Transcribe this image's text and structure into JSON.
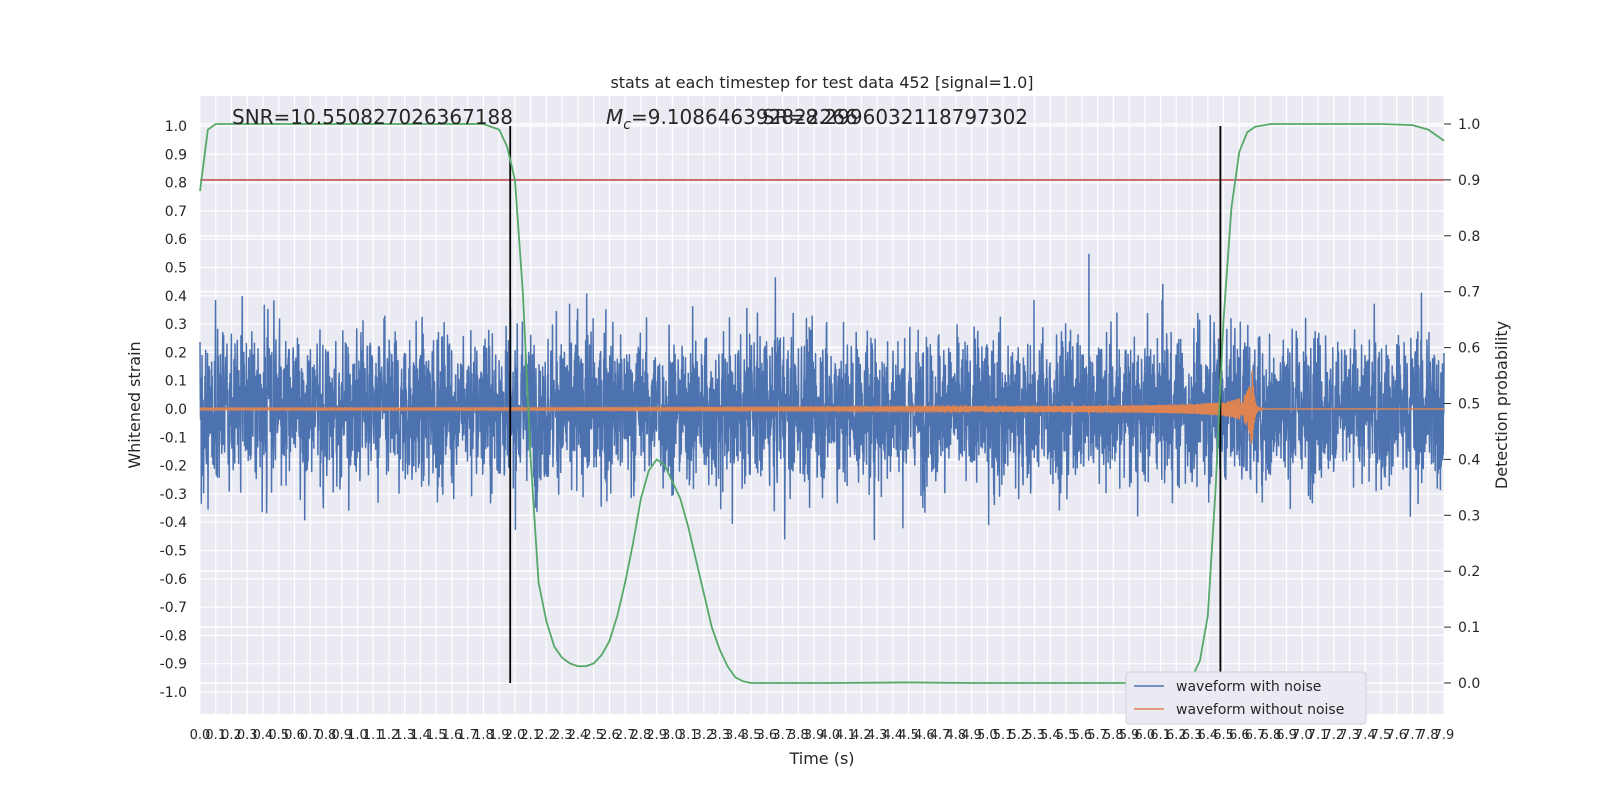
{
  "chart_data": {
    "type": "line",
    "title": "stats at each timestep for test data 452 [signal=1.0]",
    "xlabel": "Time (s)",
    "ylabel": "Whitened strain",
    "ylabel_right": "Detection probability",
    "xlim": [
      0,
      7.9
    ],
    "ylim": [
      -1.08,
      1.1
    ],
    "ylim_right": [
      -0.05,
      1.05
    ],
    "x_ticks": [
      "0.0",
      "0.1",
      "0.2",
      "0.3",
      "0.4",
      "0.5",
      "0.6",
      "0.7",
      "0.8",
      "0.9",
      "1.0",
      "1.1",
      "1.2",
      "1.3",
      "1.4",
      "1.5",
      "1.6",
      "1.7",
      "1.8",
      "1.9",
      "2.0",
      "2.1",
      "2.2",
      "2.3",
      "2.4",
      "2.5",
      "2.6",
      "2.7",
      "2.8",
      "2.9",
      "3.0",
      "3.1",
      "3.2",
      "3.3",
      "3.4",
      "3.5",
      "3.6",
      "3.7",
      "3.8",
      "3.9",
      "4.0",
      "4.1",
      "4.2",
      "4.3",
      "4.4",
      "4.5",
      "4.6",
      "4.7",
      "4.8",
      "4.9",
      "5.0",
      "5.1",
      "5.2",
      "5.3",
      "5.4",
      "5.5",
      "5.6",
      "5.7",
      "5.8",
      "5.9",
      "6.0",
      "6.1",
      "6.2",
      "6.3",
      "6.4",
      "6.5",
      "6.6",
      "6.7",
      "6.8",
      "6.9",
      "7.0",
      "7.1",
      "7.2",
      "7.3",
      "7.4",
      "7.5",
      "7.6",
      "7.7",
      "7.8",
      "7.9"
    ],
    "y_ticks": [
      "-1.0",
      "-0.9",
      "-0.8",
      "-0.7",
      "-0.6",
      "-0.5",
      "-0.4",
      "-0.3",
      "-0.2",
      "-0.1",
      "0.0",
      "0.1",
      "0.2",
      "0.3",
      "0.4",
      "0.5",
      "0.6",
      "0.7",
      "0.8",
      "0.9",
      "1.0"
    ],
    "y_ticks_right": [
      "0.0",
      "0.1",
      "0.2",
      "0.3",
      "0.4",
      "0.5",
      "0.6",
      "0.7",
      "0.8",
      "0.9",
      "1.0"
    ],
    "threshold": 0.9,
    "vlines": [
      1.97,
      6.48
    ],
    "annotations": {
      "snr": "SNR=10.550827026367188",
      "mc": "=9.108646392822266",
      "mc_symbol": "M",
      "mc_subscript": "c",
      "overlap": "SR=8.29960321187973​02"
    },
    "legend": {
      "placement": "lower-right",
      "entries": [
        "waveform with noise",
        "waveform without noise"
      ]
    },
    "series": [
      {
        "name": "waveform with noise",
        "color": "#4c72b0",
        "kind": "noise",
        "amplitude_range": [
          -1.0,
          1.0
        ]
      },
      {
        "name": "waveform without noise",
        "color": "#dd8452",
        "kind": "chirp",
        "merger_time": 6.68,
        "peak_amplitude": 0.3
      },
      {
        "color": "#55a868",
        "axis": "right",
        "x": [
          0.0,
          0.05,
          0.1,
          0.2,
          0.5,
          1.0,
          1.5,
          1.8,
          1.9,
          1.95,
          2.0,
          2.05,
          2.1,
          2.15,
          2.2,
          2.25,
          2.3,
          2.35,
          2.4,
          2.45,
          2.5,
          2.55,
          2.6,
          2.65,
          2.7,
          2.75,
          2.8,
          2.85,
          2.9,
          2.95,
          3.0,
          3.05,
          3.1,
          3.15,
          3.2,
          3.25,
          3.3,
          3.35,
          3.4,
          3.45,
          3.5,
          3.55,
          3.6,
          3.65,
          3.7,
          3.8,
          4.0,
          4.5,
          4.9,
          5.5,
          6.0,
          6.2,
          6.25,
          6.3,
          6.35,
          6.4,
          6.45,
          6.5,
          6.55,
          6.6,
          6.65,
          6.7,
          6.8,
          7.0,
          7.5,
          7.7,
          7.8,
          7.9
        ],
        "y": [
          0.88,
          0.99,
          1.0,
          1.0,
          1.0,
          1.0,
          1.0,
          1.0,
          0.99,
          0.96,
          0.9,
          0.7,
          0.4,
          0.18,
          0.11,
          0.065,
          0.045,
          0.035,
          0.03,
          0.03,
          0.035,
          0.05,
          0.075,
          0.12,
          0.18,
          0.25,
          0.33,
          0.38,
          0.4,
          0.39,
          0.36,
          0.33,
          0.28,
          0.22,
          0.16,
          0.1,
          0.06,
          0.03,
          0.01,
          0.003,
          0.0,
          0.0,
          0.0,
          0.0,
          0.0,
          0.0,
          0.0,
          0.001,
          0.0,
          0.0,
          0.0,
          0.0,
          0.0,
          0.01,
          0.04,
          0.12,
          0.35,
          0.65,
          0.85,
          0.95,
          0.985,
          0.995,
          1.0,
          1.0,
          1.0,
          0.998,
          0.99,
          0.97
        ]
      }
    ]
  }
}
